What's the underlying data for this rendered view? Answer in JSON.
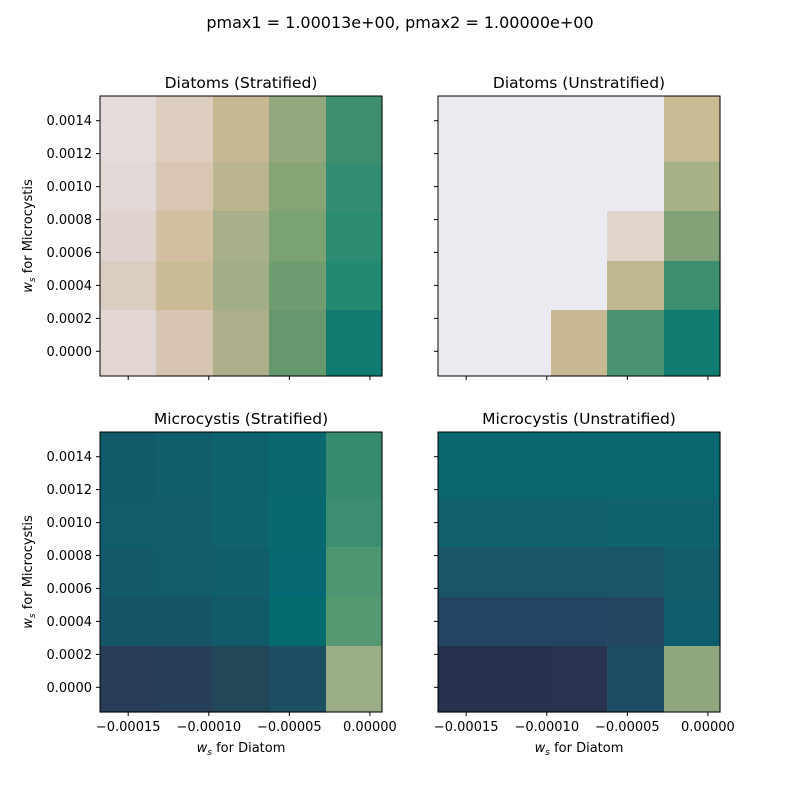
{
  "figure": {
    "suptitle": "pmax1 = 1.00013e+00, pmax2 = 1.00000e+00"
  },
  "chart_data": [
    {
      "type": "heatmap",
      "title": "Diatoms (Stratified)",
      "xlabel": "",
      "ylabel": "w_s for Microcystis",
      "xticks": [],
      "yticks": [
        "0.0014",
        "0.0012",
        "0.0010",
        "0.0008",
        "0.0006",
        "0.0004",
        "0.0002",
        "0.0000"
      ],
      "x": [
        -0.00015,
        -0.000115,
        -8e-05,
        -4.5e-05,
        -1e-05
      ],
      "y": [
        0.0014,
        0.001,
        0.0007,
        0.0004,
        0.0
      ],
      "colors": [
        [
          "#e3dcdb",
          "#dccdbf",
          "#c6b893",
          "#93a87e",
          "#3f8e70"
        ],
        [
          "#e2d9d6",
          "#d9c5b1",
          "#bbb58f",
          "#86a577",
          "#348d72"
        ],
        [
          "#dfd3cf",
          "#d4bea1",
          "#a8b08b",
          "#7ba272",
          "#2b8c72"
        ],
        [
          "#dbcdbf",
          "#c8bb96",
          "#a2ae88",
          "#6f9d70",
          "#238970"
        ],
        [
          "#e2d6d3",
          "#d7c4b1",
          "#adae8c",
          "#66986e",
          "#117a70"
        ]
      ]
    },
    {
      "type": "heatmap",
      "title": "Diatoms (Unstratified)",
      "xlabel": "",
      "ylabel": "",
      "xticks": [],
      "yticks": [],
      "x": [
        -0.00015,
        -0.000115,
        -8e-05,
        -4.5e-05,
        -1e-05
      ],
      "y": [
        0.0014,
        0.001,
        0.0007,
        0.0004,
        0.0
      ],
      "colors": [
        [
          "#ebeaf0",
          "#ebeaf0",
          "#ebeaf0",
          "#ebeaf0",
          "#c8ba92"
        ],
        [
          "#ebeaf0",
          "#ebeaf0",
          "#ebeaf0",
          "#ebeaf0",
          "#a7b186"
        ],
        [
          "#ebeaf0",
          "#ebeaf0",
          "#ebeaf0",
          "#e0d5cc",
          "#81a377"
        ],
        [
          "#ebeaf0",
          "#ebeaf0",
          "#ebeaf0",
          "#c1b891",
          "#3b8f6e"
        ],
        [
          "#ebeaf0",
          "#ebeaf0",
          "#c8b893",
          "#4a9373",
          "#107b71"
        ]
      ]
    },
    {
      "type": "heatmap",
      "title": "Microcystis (Stratified)",
      "xlabel": "w_s for Diatom",
      "ylabel": "w_s for Microcystis",
      "xticks": [
        "−0.00015",
        "−0.00010",
        "−0.00005",
        "0.00000"
      ],
      "yticks": [
        "0.0014",
        "0.0012",
        "0.0010",
        "0.0008",
        "0.0006",
        "0.0004",
        "0.0002",
        "0.0000"
      ],
      "x": [
        -0.00015,
        -0.000115,
        -8e-05,
        -4.5e-05,
        -1e-05
      ],
      "y": [
        0.0014,
        0.001,
        0.0007,
        0.0004,
        0.0
      ],
      "colors": [
        [
          "#105a6a",
          "#105e6c",
          "#0e626e",
          "#0a686e",
          "#368b6f"
        ],
        [
          "#115c6b",
          "#115d6c",
          "#0f626e",
          "#08696f",
          "#3c8e70"
        ],
        [
          "#13596a",
          "#125b6b",
          "#105d6c",
          "#066870",
          "#4e9572"
        ],
        [
          "#165468",
          "#165468",
          "#125a6a",
          "#046b6d",
          "#54996f"
        ],
        [
          "#283e58",
          "#273f59",
          "#244659",
          "#1d4f62",
          "#9bad86"
        ]
      ]
    },
    {
      "type": "heatmap",
      "title": "Microcystis (Unstratified)",
      "xlabel": "w_s for Diatom",
      "ylabel": "",
      "xticks": [
        "−0.00015",
        "−0.00010",
        "−0.00005",
        "0.00000"
      ],
      "yticks": [],
      "x": [
        -0.00015,
        -0.000115,
        -8e-05,
        -4.5e-05,
        -1e-05
      ],
      "y": [
        0.0014,
        0.001,
        0.0007,
        0.0004,
        0.0
      ],
      "colors": [
        [
          "#09676d",
          "#09676d",
          "#09676d",
          "#09676d",
          "#09676d"
        ],
        [
          "#10606d",
          "#10606d",
          "#10606d",
          "#0f626e",
          "#0f626e"
        ],
        [
          "#1b5369",
          "#1b5369",
          "#1b5369",
          "#1a5469",
          "#125c6c"
        ],
        [
          "#224563",
          "#224563",
          "#224563",
          "#234760",
          "#0e5c6c"
        ],
        [
          "#26314d",
          "#26314d",
          "#28344f",
          "#1e4c62",
          "#8fa880"
        ]
      ]
    }
  ]
}
